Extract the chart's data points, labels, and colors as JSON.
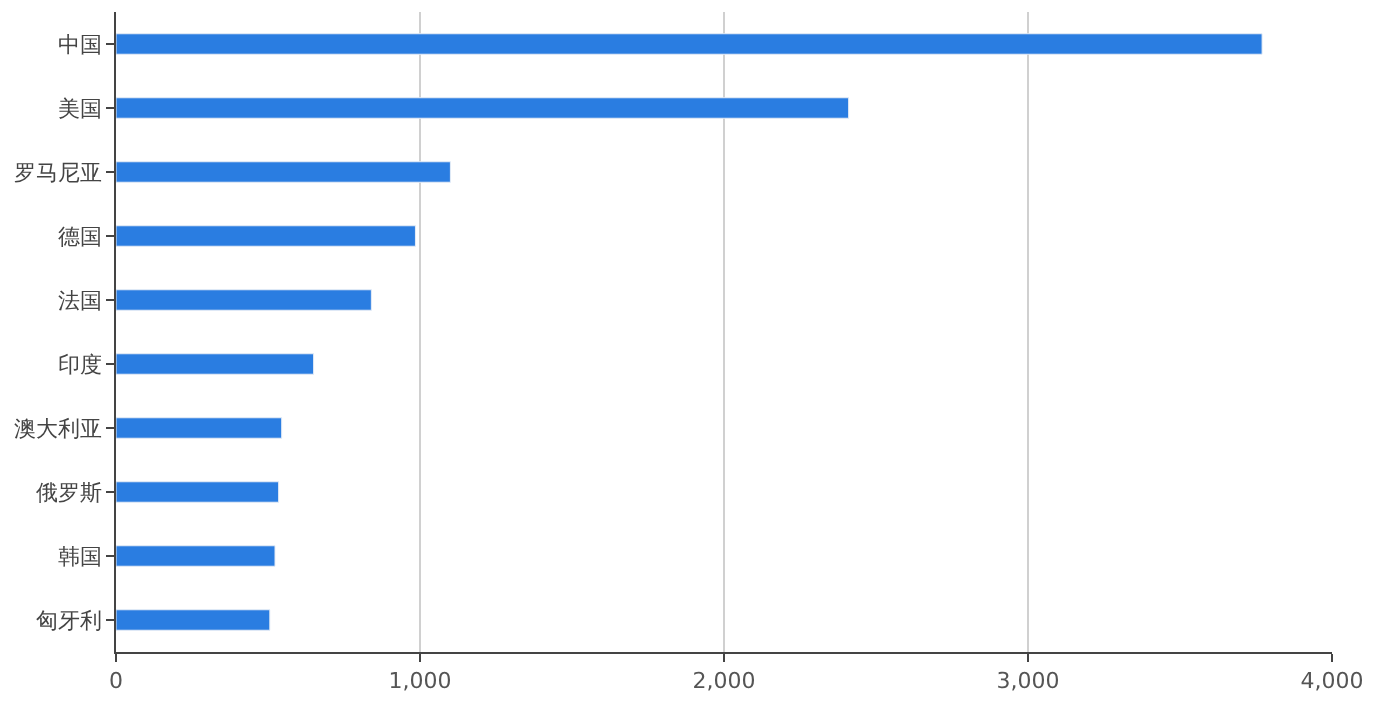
{
  "chart_data": {
    "type": "bar",
    "orientation": "horizontal",
    "categories": [
      "中国",
      "美国",
      "罗马尼亚",
      "德国",
      "法国",
      "印度",
      "澳大利亚",
      "俄罗斯",
      "韩国",
      "匈牙利"
    ],
    "values": [
      3770,
      2410,
      1100,
      985,
      840,
      650,
      545,
      535,
      523,
      506
    ],
    "color": "#2a7de1",
    "xlim": [
      0,
      4000
    ],
    "xticks": [
      {
        "value": 0,
        "label": "0"
      },
      {
        "value": 1000,
        "label": "1,000"
      },
      {
        "value": 2000,
        "label": "2,000"
      },
      {
        "value": 3000,
        "label": "3,000"
      },
      {
        "value": 4000,
        "label": "4,000"
      }
    ],
    "grid": "x",
    "legend": false
  }
}
